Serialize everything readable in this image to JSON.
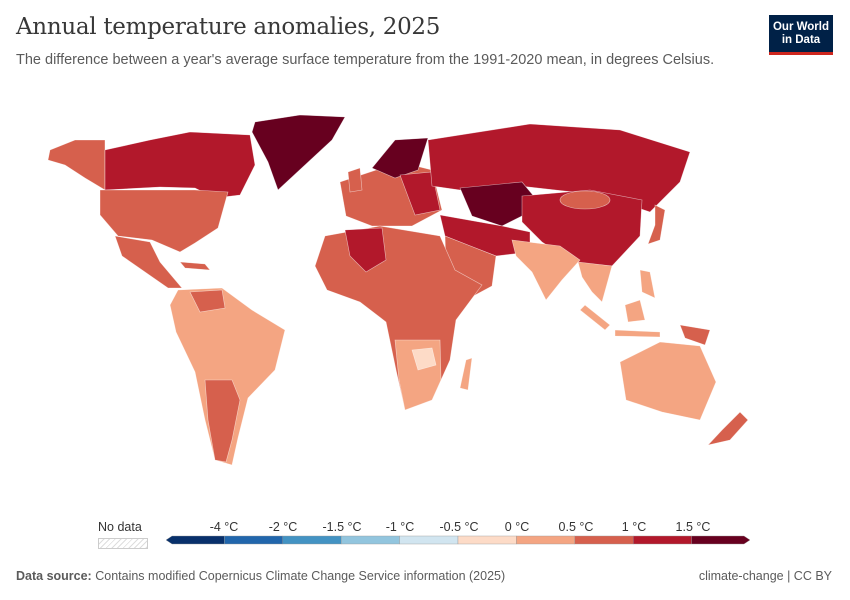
{
  "header": {
    "title": "Annual temperature anomalies, 2025",
    "subtitle": "The difference between a year's average surface temperature from the 1991-2020 mean, in degrees Celsius.",
    "logo_line1": "Our World",
    "logo_line2": "in Data"
  },
  "legend": {
    "no_data_label": "No data",
    "ticks": [
      "-4 °C",
      "-2 °C",
      "-1.5 °C",
      "-1 °C",
      "-0.5 °C",
      "0 °C",
      "0.5 °C",
      "1 °C",
      "1.5 °C"
    ],
    "bin_colors": [
      "#08306b",
      "#2166ac",
      "#4393c3",
      "#92c5de",
      "#d1e5f0",
      "#fddbc7",
      "#f4a582",
      "#d6604d",
      "#b2182b",
      "#67001f"
    ]
  },
  "footer": {
    "source_label": "Data source:",
    "source_text": "Contains modified Copernicus Climate Change Service information (2025)",
    "license": "climate-change | CC BY"
  }
}
